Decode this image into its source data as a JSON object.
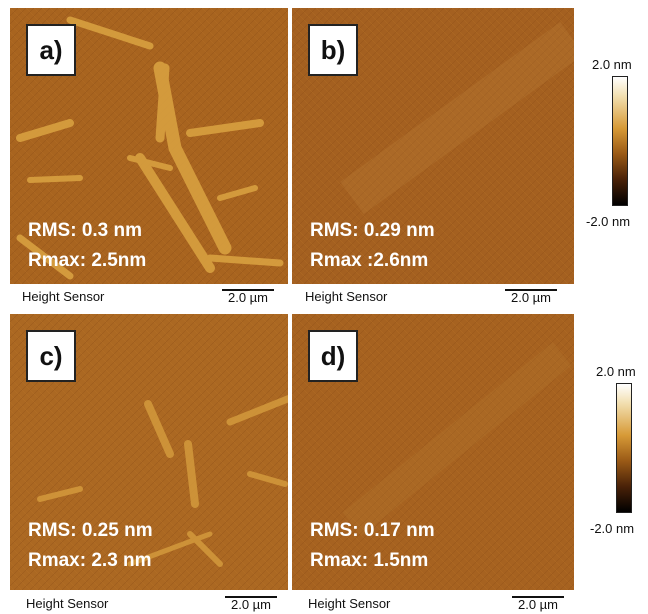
{
  "panels": [
    {
      "label": "a)",
      "rms": "RMS: 0.3 nm",
      "rmax": "Rmax: 2.5nm",
      "sensor": "Height Sensor",
      "scale": "2.0 µm"
    },
    {
      "label": "b)",
      "rms": "RMS: 0.29 nm",
      "rmax": "Rmax :2.6nm",
      "sensor": "Height Sensor",
      "scale": "2.0 µm"
    },
    {
      "label": "c)",
      "rms": "RMS: 0.25 nm",
      "rmax": "Rmax: 2.3 nm",
      "sensor": "Height Sensor",
      "scale": "2.0 µm"
    },
    {
      "label": "d)",
      "rms": "RMS: 0.17 nm",
      "rmax": "Rmax: 1.5nm",
      "sensor": "Height Sensor",
      "scale": "2.0 µm"
    }
  ],
  "colorbars": [
    {
      "max": "2.0 nm",
      "min": "-2.0 nm"
    },
    {
      "max": "2.0 nm",
      "min": "-2.0 nm"
    }
  ],
  "colors": {
    "base": "#a8641f",
    "fiber": "#d8a040",
    "dark": "#6e3a10"
  }
}
